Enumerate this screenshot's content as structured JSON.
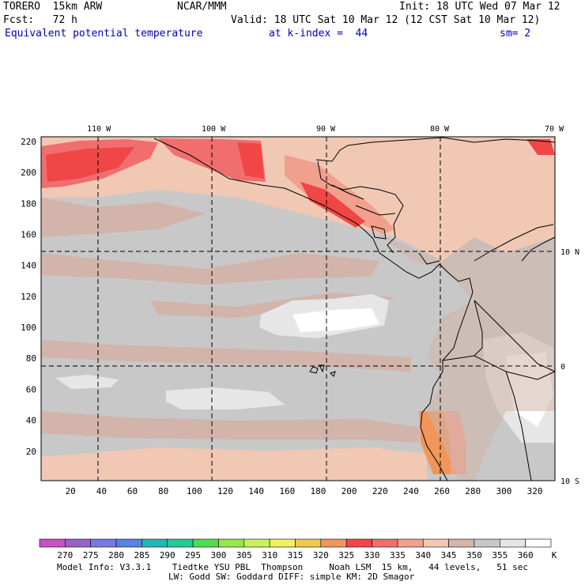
{
  "header": {
    "model": "TORERO  15km ARW",
    "center": "NCAR/MMM",
    "init": "Init: 18 UTC Wed 07 Mar 12",
    "fcst": "Fcst:   72 h",
    "valid": "Valid: 18 UTC Sat 10 Mar 12 (12 CST Sat 10 Mar 12)",
    "field": "Equivalent potential temperature",
    "level": "at k-index =  44",
    "smooth": "sm= 2"
  },
  "map": {
    "lon_labels": [
      "110 W",
      "100 W",
      "90 W",
      "80 W",
      "70 W"
    ],
    "lat_labels": [
      "10 N",
      "0",
      "10 S"
    ],
    "y_ticks": [
      "220",
      "200",
      "180",
      "160",
      "140",
      "120",
      "100",
      "80",
      "60",
      "40",
      "20"
    ],
    "x_ticks": [
      "20",
      "40",
      "60",
      "80",
      "100",
      "120",
      "140",
      "160",
      "180",
      "200",
      "220",
      "240",
      "260",
      "280",
      "300",
      "320"
    ],
    "x_range": [
      1,
      333
    ],
    "y_range": [
      1,
      223
    ]
  },
  "colorbar": {
    "levels": [
      "270",
      "275",
      "280",
      "285",
      "290",
      "295",
      "300",
      "305",
      "310",
      "315",
      "320",
      "325",
      "330",
      "335",
      "340",
      "345",
      "350",
      "355",
      "360"
    ],
    "unit": "K",
    "colors": [
      "#c850c8",
      "#9664c8",
      "#7878e6",
      "#5a82e6",
      "#28b4b4",
      "#28c896",
      "#50dc50",
      "#96e650",
      "#c8f064",
      "#f0f064",
      "#f0c850",
      "#f0965a",
      "#f04646",
      "#f06e6e",
      "#f0a08c",
      "#f0c8b4",
      "#d2b4aa",
      "#c8c8c8",
      "#e6e6e6",
      "#ffffff"
    ]
  },
  "footer": {
    "line1": "Model Info: V3.3.1    Tiedtke YSU PBL  Thompson     Noah LSM  15 km,   44 levels,   51 sec",
    "line2": "LW: Godd SW: Goddard DIFF: simple KM: 2D Smagor"
  }
}
